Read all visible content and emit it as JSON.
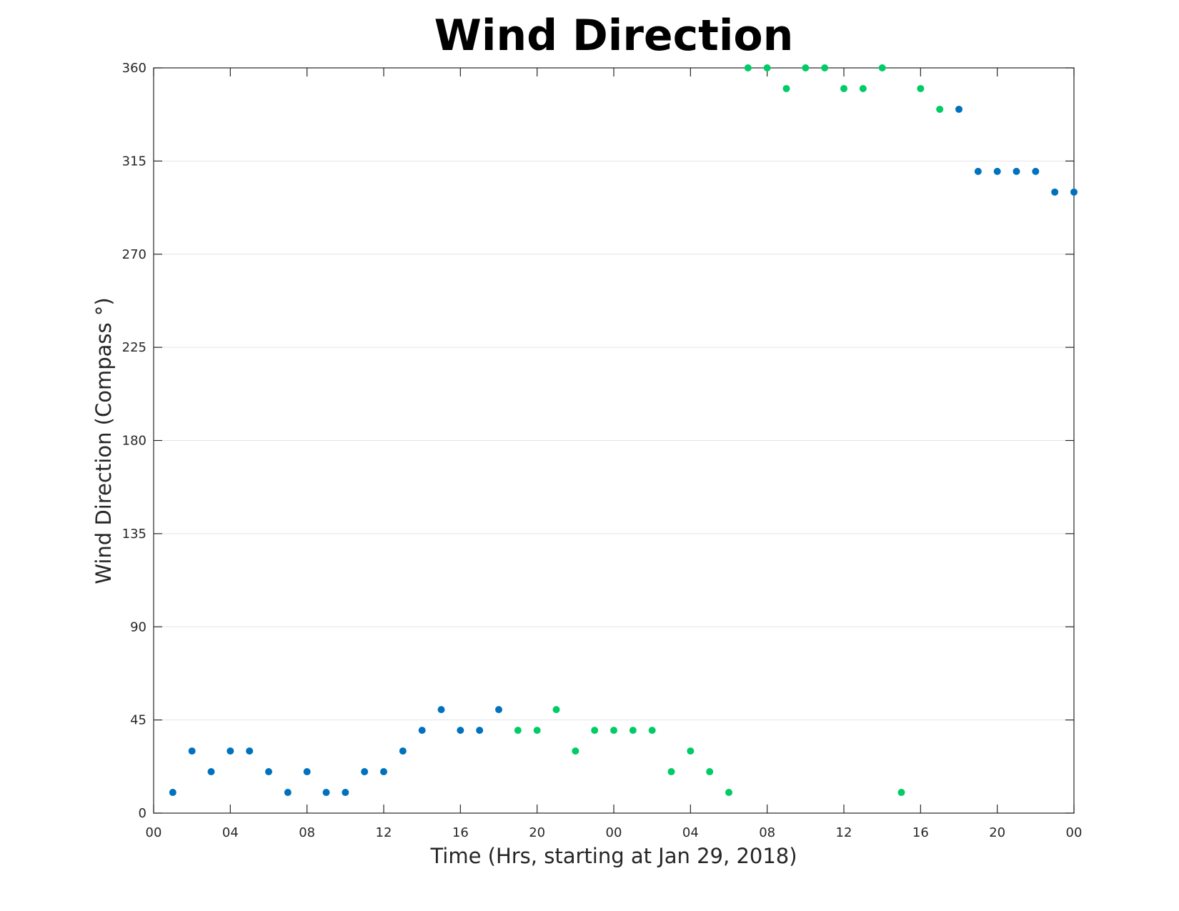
{
  "chart_data": {
    "type": "scatter",
    "title": "Wind Direction",
    "xlabel": "Time (Hrs, starting at Jan 29, 2018)",
    "ylabel": "Wind Direction (Compass °)",
    "x_unit": "hour",
    "xlim": [
      0,
      48
    ],
    "ylim": [
      0,
      360
    ],
    "x_ticks": [
      0,
      4,
      8,
      12,
      16,
      20,
      24,
      28,
      32,
      36,
      40,
      44,
      48
    ],
    "x_tick_labels": [
      "00",
      "04",
      "08",
      "12",
      "16",
      "20",
      "00",
      "04",
      "08",
      "12",
      "16",
      "20",
      "00"
    ],
    "y_ticks": [
      0,
      45,
      90,
      135,
      180,
      225,
      270,
      315,
      360
    ],
    "y_tick_labels": [
      "0",
      "45",
      "90",
      "135",
      "180",
      "225",
      "270",
      "315",
      "360"
    ],
    "grid": "horizontal",
    "colors": {
      "blue": "#0072bd",
      "green": "#00cc66"
    },
    "points": [
      {
        "x": 1,
        "y": 10,
        "color": "blue"
      },
      {
        "x": 2,
        "y": 30,
        "color": "blue"
      },
      {
        "x": 3,
        "y": 20,
        "color": "blue"
      },
      {
        "x": 4,
        "y": 30,
        "color": "blue"
      },
      {
        "x": 5,
        "y": 30,
        "color": "blue"
      },
      {
        "x": 6,
        "y": 20,
        "color": "blue"
      },
      {
        "x": 7,
        "y": 10,
        "color": "blue"
      },
      {
        "x": 8,
        "y": 20,
        "color": "blue"
      },
      {
        "x": 9,
        "y": 10,
        "color": "blue"
      },
      {
        "x": 10,
        "y": 10,
        "color": "blue"
      },
      {
        "x": 11,
        "y": 20,
        "color": "blue"
      },
      {
        "x": 12,
        "y": 20,
        "color": "blue"
      },
      {
        "x": 13,
        "y": 30,
        "color": "blue"
      },
      {
        "x": 14,
        "y": 40,
        "color": "blue"
      },
      {
        "x": 15,
        "y": 50,
        "color": "blue"
      },
      {
        "x": 16,
        "y": 40,
        "color": "blue"
      },
      {
        "x": 17,
        "y": 40,
        "color": "blue"
      },
      {
        "x": 18,
        "y": 50,
        "color": "blue"
      },
      {
        "x": 19,
        "y": 40,
        "color": "green"
      },
      {
        "x": 20,
        "y": 40,
        "color": "green"
      },
      {
        "x": 21,
        "y": 50,
        "color": "green"
      },
      {
        "x": 22,
        "y": 30,
        "color": "green"
      },
      {
        "x": 23,
        "y": 40,
        "color": "green"
      },
      {
        "x": 24,
        "y": 40,
        "color": "green"
      },
      {
        "x": 25,
        "y": 40,
        "color": "green"
      },
      {
        "x": 26,
        "y": 40,
        "color": "green"
      },
      {
        "x": 27,
        "y": 20,
        "color": "green"
      },
      {
        "x": 28,
        "y": 30,
        "color": "green"
      },
      {
        "x": 29,
        "y": 20,
        "color": "green"
      },
      {
        "x": 30,
        "y": 10,
        "color": "green"
      },
      {
        "x": 31,
        "y": 360,
        "color": "green"
      },
      {
        "x": 32,
        "y": 360,
        "color": "green"
      },
      {
        "x": 33,
        "y": 350,
        "color": "green"
      },
      {
        "x": 34,
        "y": 360,
        "color": "green"
      },
      {
        "x": 35,
        "y": 360,
        "color": "green"
      },
      {
        "x": 36,
        "y": 350,
        "color": "green"
      },
      {
        "x": 37,
        "y": 350,
        "color": "green"
      },
      {
        "x": 38,
        "y": 360,
        "color": "green"
      },
      {
        "x": 39,
        "y": 10,
        "color": "green"
      },
      {
        "x": 40,
        "y": 350,
        "color": "green"
      },
      {
        "x": 41,
        "y": 340,
        "color": "green"
      },
      {
        "x": 42,
        "y": 340,
        "color": "blue"
      },
      {
        "x": 43,
        "y": 310,
        "color": "blue"
      },
      {
        "x": 44,
        "y": 310,
        "color": "blue"
      },
      {
        "x": 45,
        "y": 310,
        "color": "blue"
      },
      {
        "x": 46,
        "y": 310,
        "color": "blue"
      },
      {
        "x": 47,
        "y": 300,
        "color": "blue"
      },
      {
        "x": 48,
        "y": 300,
        "color": "blue"
      }
    ]
  }
}
